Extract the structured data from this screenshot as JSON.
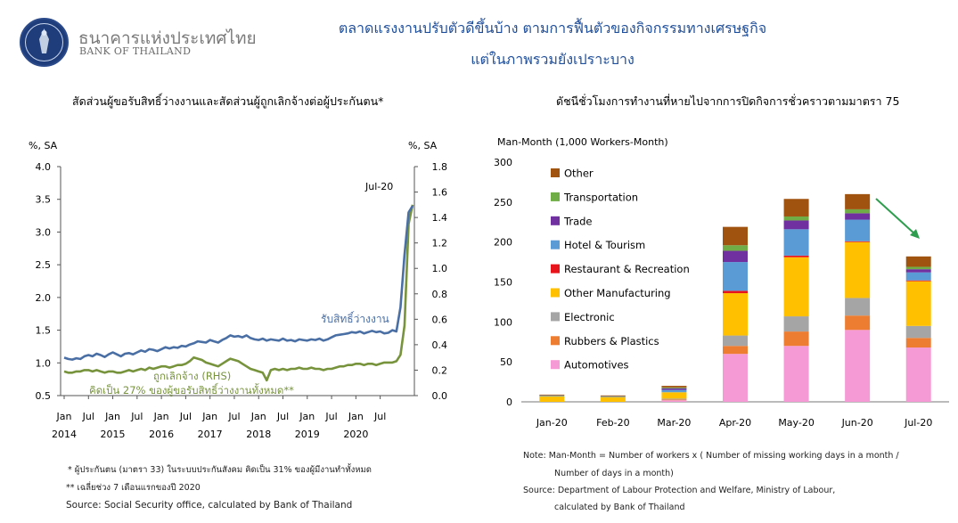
{
  "logo": {
    "name_th": "ธนาคารแห่งประเทศไทย",
    "name_en": "BANK OF THAILAND",
    "emblem": "bot-emblem-icon"
  },
  "headline": {
    "line1": "ตลาดแรงงานปรับตัวดีขึ้นบ้าง ตามการฟื้นตัวของกิจกรรมทางเศรษฐกิจ",
    "line2": "แต่ในภาพรวมยังเปราะบาง"
  },
  "left_panel": {
    "subtitle": "สัดส่วนผู้ขอรับสิทธิ์ว่างงานและสัดส่วนผู้ถูกเลิกจ้างต่อผู้ประกันตน*",
    "notes": [
      "* ผู้ประกันตน (มาตรา 33) ในระบบประกันสังคม คิดเป็น 31% ของผู้มีงานทำทั้งหมด",
      "** เฉลี่ยช่วง 7 เดือนแรกของปี 2020",
      "Source: Social Security office, calculated by Bank of Thailand"
    ]
  },
  "right_panel": {
    "subtitle": "ดัชนีชั่วโมงการทำงานที่หายไปจากการปิดกิจการชั่วคราวตามมาตรา 75",
    "notes": [
      "Note:  Man-Month = Number of workers x ( Number of missing working days in a month /",
      "Number of days in a month)",
      "Source: Department of Labour Protection and Welfare, Ministry of Labour,",
      "calculated by Bank of Thailand"
    ]
  },
  "chart_data": [
    {
      "type": "line",
      "ylabel_left": "%, SA",
      "ylabel_right": "%, SA",
      "ylim_left": [
        0.5,
        4.0
      ],
      "yticks_left": [
        "0.5",
        "1.0",
        "1.5",
        "2.0",
        "2.5",
        "3.0",
        "3.5",
        "4.0"
      ],
      "ylim_right": [
        0.0,
        1.8
      ],
      "yticks_right": [
        "0.0",
        "0.2",
        "0.4",
        "0.6",
        "0.8",
        "1.0",
        "1.2",
        "1.4",
        "1.6",
        "1.8"
      ],
      "x_month_labels": [
        "Jan",
        "Jul",
        "Jan",
        "Jul",
        "Jan",
        "Jul",
        "Jan",
        "Jul",
        "Jan",
        "Jul",
        "Jan",
        "Jul",
        "Jan",
        "Jul"
      ],
      "x_year_labels": [
        "2014",
        "2015",
        "2016",
        "2017",
        "2018",
        "2019",
        "2020"
      ],
      "annotations": {
        "peak": "Jul-20",
        "unemployment_label": "รับสิทธิ์ว่างงาน",
        "laidoff_label": "ถูกเลิกจ้าง (RHS)",
        "share_note": "คิดเป็น 27% ของผู้ขอรับสิทธิ์ว่างงานทั้งหมด**"
      },
      "colors": {
        "unemployment": "#4a6fa5",
        "laidoff": "#77933c"
      },
      "series": [
        {
          "name": "รับสิทธิ์ว่างงาน",
          "axis": "left",
          "values": [
            1.08,
            1.06,
            1.05,
            1.07,
            1.06,
            1.1,
            1.12,
            1.1,
            1.14,
            1.12,
            1.09,
            1.13,
            1.16,
            1.13,
            1.1,
            1.14,
            1.15,
            1.13,
            1.16,
            1.19,
            1.17,
            1.21,
            1.2,
            1.18,
            1.21,
            1.24,
            1.22,
            1.24,
            1.23,
            1.26,
            1.25,
            1.28,
            1.3,
            1.33,
            1.32,
            1.31,
            1.35,
            1.33,
            1.31,
            1.35,
            1.38,
            1.42,
            1.4,
            1.41,
            1.39,
            1.42,
            1.38,
            1.36,
            1.35,
            1.37,
            1.34,
            1.36,
            1.35,
            1.34,
            1.37,
            1.34,
            1.35,
            1.33,
            1.36,
            1.35,
            1.34,
            1.36,
            1.35,
            1.37,
            1.34,
            1.36,
            1.39,
            1.42,
            1.43,
            1.44,
            1.45,
            1.47,
            1.46,
            1.48,
            1.45,
            1.47,
            1.49,
            1.47,
            1.48,
            1.45,
            1.46,
            1.5,
            1.48,
            1.85,
            2.65,
            3.3,
            3.4
          ]
        },
        {
          "name": "ถูกเลิกจ้าง (RHS)",
          "axis": "right",
          "values": [
            0.19,
            0.18,
            0.18,
            0.19,
            0.19,
            0.2,
            0.2,
            0.19,
            0.2,
            0.19,
            0.18,
            0.19,
            0.19,
            0.18,
            0.18,
            0.19,
            0.2,
            0.19,
            0.2,
            0.21,
            0.2,
            0.22,
            0.21,
            0.22,
            0.23,
            0.23,
            0.22,
            0.23,
            0.24,
            0.24,
            0.25,
            0.27,
            0.3,
            0.29,
            0.28,
            0.26,
            0.25,
            0.24,
            0.23,
            0.25,
            0.27,
            0.29,
            0.28,
            0.27,
            0.25,
            0.23,
            0.21,
            0.2,
            0.19,
            0.18,
            0.12,
            0.2,
            0.21,
            0.2,
            0.21,
            0.2,
            0.21,
            0.21,
            0.22,
            0.21,
            0.21,
            0.22,
            0.21,
            0.21,
            0.2,
            0.21,
            0.21,
            0.22,
            0.23,
            0.23,
            0.24,
            0.24,
            0.25,
            0.25,
            0.24,
            0.25,
            0.25,
            0.24,
            0.25,
            0.26,
            0.26,
            0.26,
            0.27,
            0.32,
            0.55,
            1.35,
            1.5
          ]
        }
      ]
    },
    {
      "type": "bar",
      "stacked": true,
      "ylabel": "Man-Month (1,000 Workers-Month)",
      "ylim": [
        0,
        300
      ],
      "yticks": [
        "0",
        "50",
        "100",
        "150",
        "200",
        "250",
        "300"
      ],
      "categories": [
        "Jan-20",
        "Feb-20",
        "Mar-20",
        "Apr-20",
        "May-20",
        "Jun-20",
        "Jul-20"
      ],
      "legend_position": "left-top",
      "arrow_color": "#2e9e4e",
      "series": [
        {
          "name": "Automotives",
          "color": "#f59ad4",
          "values": [
            0,
            0,
            2,
            60,
            70,
            90,
            68
          ]
        },
        {
          "name": "Rubbers & Plastics",
          "color": "#ed7d31",
          "values": [
            0,
            0,
            1,
            10,
            18,
            18,
            12
          ]
        },
        {
          "name": "Electronic",
          "color": "#a5a5a5",
          "values": [
            0,
            0,
            1,
            13,
            19,
            22,
            15
          ]
        },
        {
          "name": "Other Manufacturing",
          "color": "#ffc000",
          "values": [
            7,
            6,
            8,
            53,
            74,
            70,
            56
          ]
        },
        {
          "name": "Restaurant & Recreation",
          "color": "#e8141b",
          "values": [
            0,
            0,
            0,
            3,
            2,
            1,
            1
          ]
        },
        {
          "name": "Hotel & Tourism",
          "color": "#5b9bd5",
          "values": [
            1,
            1,
            3,
            36,
            33,
            27,
            10
          ]
        },
        {
          "name": "Trade",
          "color": "#7030a0",
          "values": [
            0,
            0,
            2,
            14,
            11,
            8,
            4
          ]
        },
        {
          "name": "Transportation",
          "color": "#70ad47",
          "values": [
            0,
            0,
            1,
            7,
            5,
            5,
            3
          ]
        },
        {
          "name": "Other",
          "color": "#a0520f",
          "values": [
            1,
            1,
            2,
            23,
            22,
            19,
            13
          ]
        }
      ]
    }
  ]
}
